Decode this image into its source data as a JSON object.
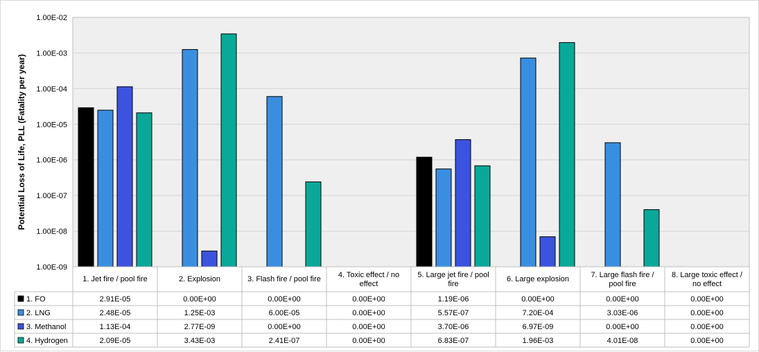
{
  "chart_data": {
    "type": "bar",
    "yscale": "log",
    "ylabel": "Potential Loss of Life, PLL (Fatality per year)",
    "ylim": [
      1e-09,
      0.01
    ],
    "yticks": [
      "1.00E-09",
      "1.00E-08",
      "1.00E-07",
      "1.00E-06",
      "1.00E-05",
      "1.00E-04",
      "1.00E-03",
      "1.00E-02"
    ],
    "grid": true,
    "legend_placement": "data-table",
    "categories": [
      [
        "1. Jet fire / pool fire"
      ],
      [
        "2. Explosion"
      ],
      [
        "3. Flash fire / pool fire"
      ],
      [
        "4. Toxic effect / no",
        "effect"
      ],
      [
        "5. Large jet fire / pool",
        "fire"
      ],
      [
        "6. Large explosion"
      ],
      [
        "7. Large flash fire /",
        "pool fire"
      ],
      [
        "8. Large toxic effect /",
        "no effect"
      ]
    ],
    "series": [
      {
        "name": "1. FO",
        "color": "#000000",
        "values": [
          2.91e-05,
          0,
          0,
          0,
          1.19e-06,
          0,
          0,
          0
        ],
        "labels": [
          "2.91E-05",
          "0.00E+00",
          "0.00E+00",
          "0.00E+00",
          "1.19E-06",
          "0.00E+00",
          "0.00E+00",
          "0.00E+00"
        ]
      },
      {
        "name": "2. LNG",
        "color": "#3a8ee0",
        "values": [
          2.48e-05,
          0.00125,
          6e-05,
          0,
          5.57e-07,
          0.00072,
          3.03e-06,
          0
        ],
        "labels": [
          "2.48E-05",
          "1.25E-03",
          "6.00E-05",
          "0.00E+00",
          "5.57E-07",
          "7.20E-04",
          "3.03E-06",
          "0.00E+00"
        ]
      },
      {
        "name": "3. Methanol",
        "color": "#3b53de",
        "values": [
          0.000113,
          2.77e-09,
          0,
          0,
          3.7e-06,
          6.97e-09,
          0,
          0
        ],
        "labels": [
          "1.13E-04",
          "2.77E-09",
          "0.00E+00",
          "0.00E+00",
          "3.70E-06",
          "6.97E-09",
          "0.00E+00",
          "0.00E+00"
        ]
      },
      {
        "name": "4. Hydrogen",
        "color": "#0aa899",
        "values": [
          2.09e-05,
          0.00343,
          2.41e-07,
          0,
          6.83e-07,
          0.00196,
          4.01e-08,
          0
        ],
        "labels": [
          "2.09E-05",
          "3.43E-03",
          "2.41E-07",
          "0.00E+00",
          "6.83E-07",
          "1.96E-03",
          "4.01E-08",
          "0.00E+00"
        ]
      }
    ]
  }
}
